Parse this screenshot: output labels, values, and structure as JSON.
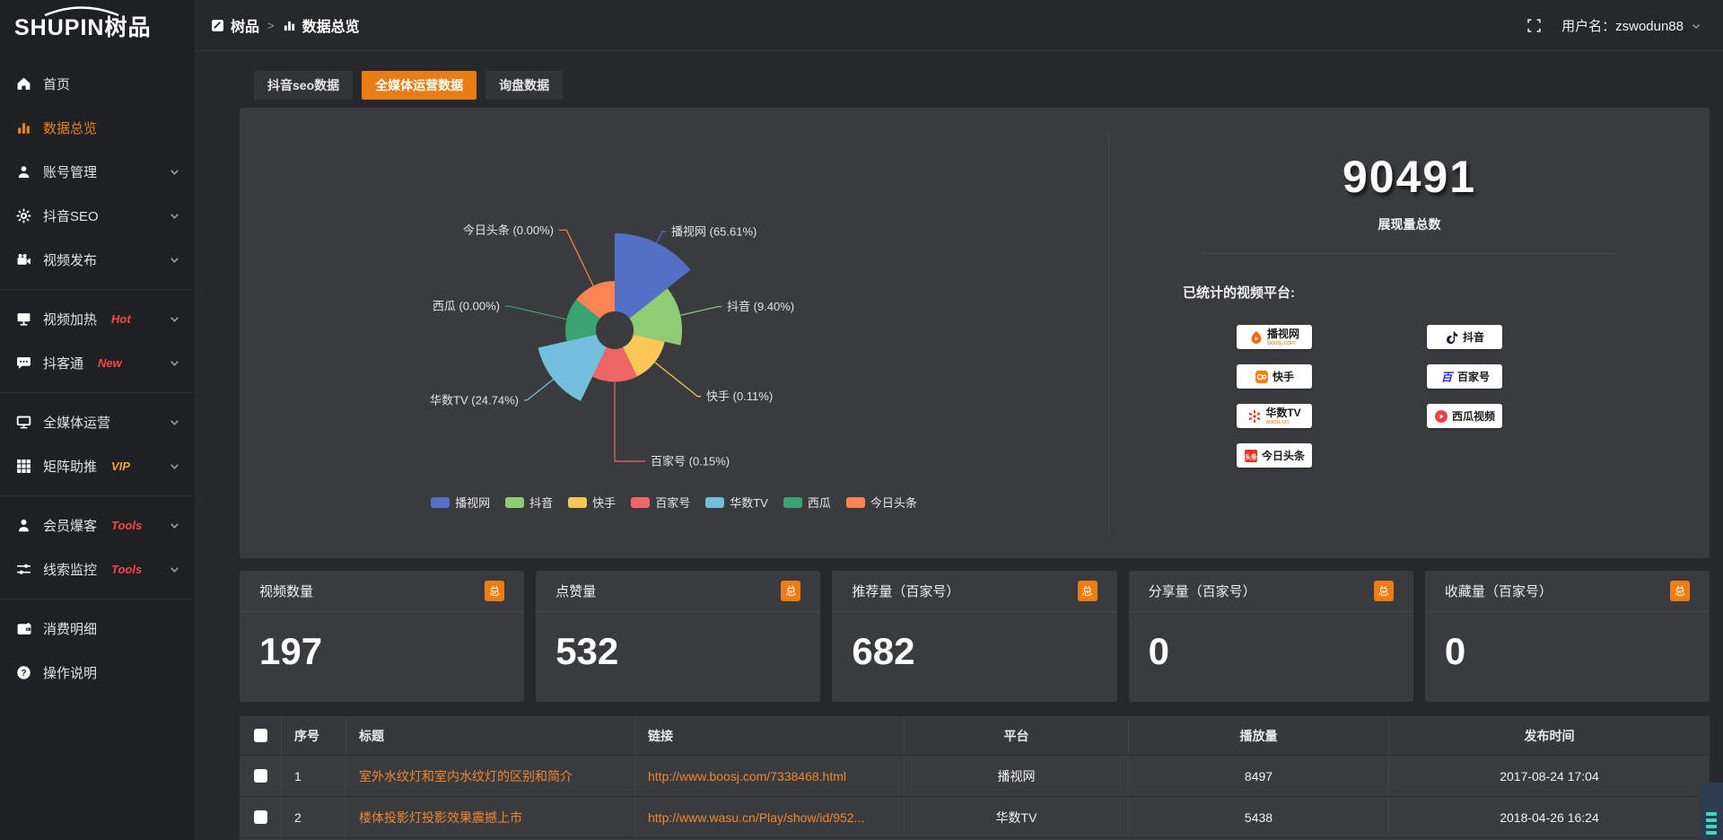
{
  "topbar": {
    "logo_main": "SHUPIN",
    "logo_cn": "树品",
    "breadcrumb": [
      {
        "label": "树品"
      },
      {
        "label": "数据总览"
      }
    ],
    "username": "用户名：zswodun88"
  },
  "sidebar": {
    "groups": [
      {
        "items": [
          {
            "icon": "home-icon",
            "label": "首页"
          },
          {
            "icon": "bar-chart-icon",
            "label": "数据总览",
            "active": true
          },
          {
            "icon": "user-icon",
            "label": "账号管理",
            "expand": true
          },
          {
            "icon": "gear-icon",
            "label": "抖音SEO",
            "expand": true
          },
          {
            "icon": "video-camera-icon",
            "label": "视频发布",
            "expand": true
          }
        ]
      },
      {
        "items": [
          {
            "icon": "screen-icon",
            "label": "视频加热",
            "tag": "Hot",
            "tag_color": "#ff4545",
            "expand": true
          },
          {
            "icon": "chat-icon",
            "label": "抖客通",
            "tag": "New",
            "tag_color": "#ff4545",
            "expand": true
          }
        ]
      },
      {
        "items": [
          {
            "icon": "monitor-icon",
            "label": "全媒体运营",
            "expand": true
          },
          {
            "icon": "grid-icon",
            "label": "矩阵助推",
            "tag": "VIP",
            "tag_color": "#f0a32a",
            "expand": true
          }
        ]
      },
      {
        "items": [
          {
            "icon": "person-icon",
            "label": "会员爆客",
            "tag": "Tools",
            "tag_color": "#ff4545",
            "expand": true
          },
          {
            "icon": "sliders-icon",
            "label": "线索监控",
            "tag": "Tools",
            "tag_color": "#ff4545",
            "expand": true
          }
        ]
      },
      {
        "items": [
          {
            "icon": "wallet-icon",
            "label": "消费明细"
          },
          {
            "icon": "help-icon",
            "label": "操作说明"
          }
        ]
      }
    ]
  },
  "tabs": [
    {
      "label": "抖音seo数据",
      "active": false
    },
    {
      "label": "全媒体运营数据",
      "active": true
    },
    {
      "label": "询盘数据",
      "active": false
    }
  ],
  "chart_data": {
    "type": "pie",
    "variant": "nightingale-rose",
    "series": [
      {
        "name": "播视网",
        "value": 65.61
      },
      {
        "name": "抖音",
        "value": 9.4
      },
      {
        "name": "快手",
        "value": 0.11
      },
      {
        "name": "百家号",
        "value": 0.15
      },
      {
        "name": "华数TV",
        "value": 24.74
      },
      {
        "name": "西瓜",
        "value": 0.0
      },
      {
        "name": "今日头条",
        "value": 0.0
      }
    ],
    "labels": [
      "播视网 (65.61%)",
      "抖音 (9.40%)",
      "快手 (0.11%)",
      "百家号 (0.15%)",
      "华数TV (24.74%)",
      "西瓜 (0.00%)",
      "今日头条 (0.00%)"
    ],
    "colors": [
      "#5470c6",
      "#91cc75",
      "#fac858",
      "#ee6666",
      "#73c0de",
      "#3ba272",
      "#fc8452"
    ],
    "legend": [
      "播视网",
      "抖音",
      "快手",
      "百家号",
      "华数TV",
      "西瓜",
      "今日头条"
    ],
    "legend_position": "bottom"
  },
  "overview": {
    "total_value": "90491",
    "total_label": "展现量总数",
    "platforms_label": "已统计的视频平台:",
    "platform_columns": [
      [
        {
          "name": "播视网",
          "sub": "boosj.com",
          "icon": "boosj-icon"
        },
        {
          "name": "快手",
          "icon": "kuaishou-icon"
        },
        {
          "name": "华数TV",
          "sub": "wasu.cn",
          "icon": "wasu-icon"
        },
        {
          "name": "今日头条",
          "icon": "toutiao-icon"
        }
      ],
      [
        {
          "name": "抖音",
          "icon": "douyin-icon"
        },
        {
          "name": "百家号",
          "icon": "baijiahao-icon"
        },
        {
          "name": "西瓜视频",
          "icon": "xigua-icon"
        }
      ]
    ]
  },
  "stats_cards": [
    {
      "label": "视频数量",
      "badge": "总",
      "value": "197"
    },
    {
      "label": "点赞量",
      "badge": "总",
      "value": "532"
    },
    {
      "label": "推荐量（百家号）",
      "badge": "总",
      "value": "682"
    },
    {
      "label": "分享量（百家号）",
      "badge": "总",
      "value": "0"
    },
    {
      "label": "收藏量（百家号）",
      "badge": "总",
      "value": "0"
    }
  ],
  "table": {
    "headers": [
      "序号",
      "标题",
      "链接",
      "平台",
      "播放量",
      "发布时间"
    ],
    "rows": [
      {
        "index": "1",
        "title": "室外水纹灯和室内水纹灯的区别和简介",
        "link": "http://www.boosj.com/7338468.html",
        "platform": "播视网",
        "plays": "8497",
        "time": "2017-08-24 17:04"
      },
      {
        "index": "2",
        "title": "楼体投影灯投影效果震撼上市",
        "link": "http://www.wasu.cn/Play/show/id/952...",
        "platform": "华数TV",
        "plays": "5438",
        "time": "2018-04-26 16:24"
      }
    ]
  }
}
